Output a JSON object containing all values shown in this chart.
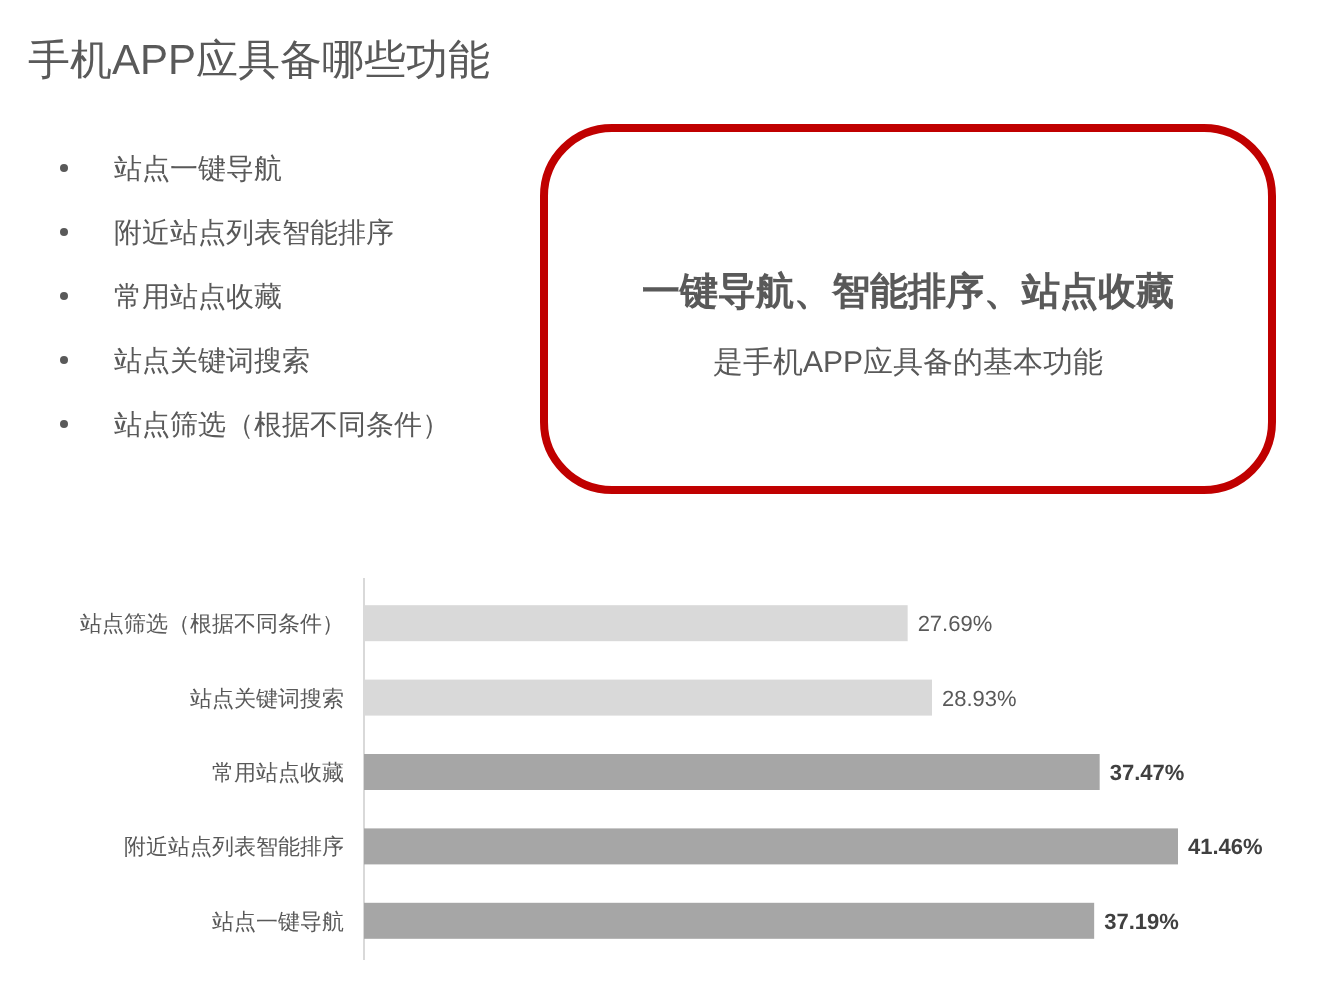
{
  "chart_data": [
    {
      "type": "other",
      "title": "手机APP应具备哪些功能",
      "annotations": [
        "站点一键导航",
        "附近站点列表智能排序",
        "常用站点收藏",
        "站点关键词搜索",
        "站点筛选（根据不同条件）"
      ]
    },
    {
      "type": "other",
      "title": "一键导航、智能排序、站点收藏",
      "subtitle": "是手机APP应具备的基本功能"
    },
    {
      "type": "bar",
      "orientation": "horizontal",
      "categories": [
        "站点筛选（根据不同条件）",
        "站点关键词搜索",
        "常用站点收藏",
        "附近站点列表智能排序",
        "站点一键导航"
      ],
      "values": [
        27.69,
        28.93,
        37.47,
        41.46,
        37.19
      ],
      "colors": [
        "#d9d9d9",
        "#d9d9d9",
        "#a6a6a6",
        "#a6a6a6",
        "#a6a6a6"
      ],
      "value_labels": [
        "27.69%",
        "28.93%",
        "37.47%",
        "41.46%",
        "37.19%"
      ]
    }
  ]
}
